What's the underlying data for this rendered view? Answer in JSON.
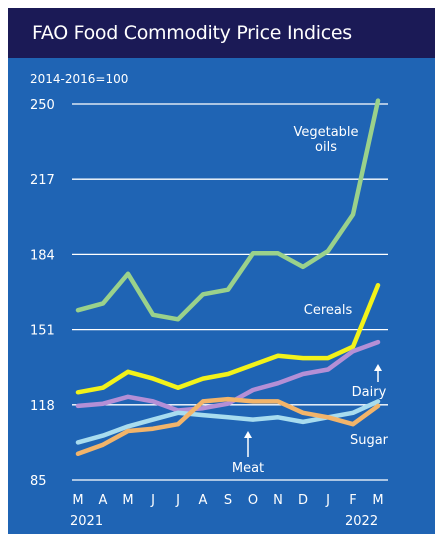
{
  "chart_data": {
    "type": "line",
    "title": "FAO Food Commodity Price Indices",
    "ylabel": "2014-2016=100",
    "ylim": [
      85,
      250
    ],
    "yticks": [
      85,
      118,
      151,
      184,
      217,
      250
    ],
    "categories": [
      "M",
      "A",
      "M",
      "J",
      "J",
      "A",
      "S",
      "O",
      "N",
      "D",
      "J",
      "F",
      "M"
    ],
    "year_labels": [
      {
        "index": 0,
        "text": "2021"
      },
      {
        "index": 11,
        "text": "2022"
      }
    ],
    "grid": true,
    "series": [
      {
        "name": "Vegetable oils",
        "label_lines": [
          "Vegetable",
          "oils"
        ],
        "color": "#9ad18b",
        "values": [
          159.5,
          162.5,
          175.5,
          157.5,
          155.5,
          166.5,
          168.5,
          184.5,
          184.5,
          178.5,
          185.5,
          201.5,
          251.5
        ]
      },
      {
        "name": "Cereals",
        "label_lines": [
          "Cereals"
        ],
        "color": "#f2f21a",
        "values": [
          123.5,
          125.5,
          132.5,
          129.5,
          125.5,
          129.5,
          131.5,
          135.5,
          139.5,
          138.5,
          138.5,
          143.5,
          170.5
        ]
      },
      {
        "name": "Dairy",
        "label_lines": [
          "Dairy"
        ],
        "color": "#b48fd6",
        "values": [
          117.5,
          118.5,
          121.5,
          119.5,
          115.5,
          116.5,
          118.5,
          124.5,
          127.5,
          131.5,
          133.5,
          141.5,
          145.5
        ]
      },
      {
        "name": "Meat",
        "label_lines": [
          "Meat"
        ],
        "color": "#a8dcef",
        "values": [
          101.5,
          104.5,
          108.5,
          111.5,
          114.5,
          113.5,
          112.5,
          111.5,
          112.5,
          110.5,
          112.5,
          114.5,
          119.5
        ]
      },
      {
        "name": "Sugar",
        "label_lines": [
          "Sugar"
        ],
        "color": "#f2b46a",
        "values": [
          96.5,
          100.5,
          106.5,
          107.5,
          109.5,
          119.5,
          120.5,
          119.5,
          119.5,
          114.5,
          112.5,
          109.5,
          117.5
        ]
      }
    ]
  }
}
